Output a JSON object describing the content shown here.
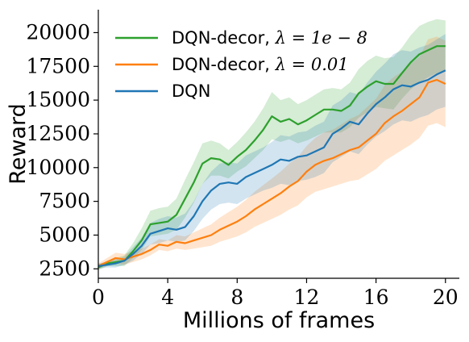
{
  "chart_data": {
    "type": "line",
    "xlabel": "Millions of frames",
    "ylabel": "Reward",
    "xlim": [
      0,
      20.8
    ],
    "ylim": [
      1800,
      21700
    ],
    "xticks": [
      0,
      4,
      8,
      12,
      16,
      20
    ],
    "yticks": [
      2500,
      5000,
      7500,
      10000,
      12500,
      15000,
      17500,
      20000
    ],
    "grid": false,
    "legend_position": "top-left",
    "legend": [
      {
        "series": "decor_small",
        "text": "DQN-decor, ",
        "math": "λ = 1e − 8"
      },
      {
        "series": "decor_large",
        "text": "DQN-decor, ",
        "math": "λ = 0.01"
      },
      {
        "series": "dqn",
        "text": "DQN",
        "math": ""
      }
    ],
    "series": [
      {
        "key": "decor_small",
        "name": "DQN-decor, λ = 1e − 8",
        "color": "#2ca02c",
        "x": [
          0,
          0.5,
          1,
          1.5,
          2,
          2.5,
          3,
          3.5,
          4,
          4.5,
          5,
          5.5,
          6,
          6.5,
          7,
          7.5,
          8,
          8.5,
          9,
          9.5,
          10,
          10.5,
          11,
          11.5,
          12,
          12.5,
          13,
          13.5,
          14,
          14.5,
          15,
          15.5,
          16,
          16.5,
          17,
          17.5,
          18,
          18.5,
          19,
          19.5,
          20
        ],
        "values": [
          2600,
          2900,
          3000,
          3100,
          3800,
          4600,
          5800,
          5900,
          6000,
          6500,
          7700,
          8900,
          10300,
          10700,
          10600,
          10200,
          10800,
          11300,
          12000,
          12800,
          13800,
          13400,
          13600,
          13200,
          13500,
          13900,
          14300,
          14300,
          14200,
          14600,
          15500,
          16000,
          16400,
          16200,
          16200,
          17000,
          17800,
          18400,
          18700,
          19000,
          19000
        ],
        "lower": [
          2400,
          2700,
          2700,
          2700,
          3300,
          3900,
          4900,
          5000,
          5100,
          5400,
          6300,
          7400,
          8800,
          9400,
          9400,
          9200,
          9700,
          10100,
          10700,
          11300,
          12100,
          11900,
          12100,
          11800,
          12000,
          12300,
          12600,
          12600,
          12600,
          13000,
          13700,
          14100,
          14500,
          14400,
          14300,
          15100,
          15800,
          16300,
          16700,
          17000,
          17200
        ],
        "upper": [
          2800,
          3100,
          3300,
          3500,
          4400,
          5500,
          6800,
          7000,
          7100,
          7700,
          9100,
          10400,
          11800,
          12000,
          11800,
          11300,
          11900,
          12600,
          13400,
          14400,
          15600,
          15000,
          15200,
          14700,
          15000,
          15400,
          15800,
          15900,
          15800,
          16300,
          17300,
          17900,
          18300,
          18100,
          18200,
          18900,
          19800,
          20500,
          20800,
          21000,
          20900
        ]
      },
      {
        "key": "decor_large",
        "name": "DQN-decor, λ = 0.01",
        "color": "#ff7f0e",
        "x": [
          0,
          0.5,
          1,
          1.5,
          2,
          2.5,
          3,
          3.5,
          4,
          4.5,
          5,
          5.5,
          6,
          6.5,
          7,
          7.5,
          8,
          8.5,
          9,
          9.5,
          10,
          10.5,
          11,
          11.5,
          12,
          12.5,
          13,
          13.5,
          14,
          14.5,
          15,
          15.5,
          16,
          16.5,
          17,
          17.5,
          18,
          18.5,
          19,
          19.5,
          20
        ],
        "values": [
          2700,
          3000,
          3300,
          3200,
          3400,
          3600,
          3900,
          4300,
          4200,
          4500,
          4400,
          4600,
          4800,
          5000,
          5400,
          5700,
          6000,
          6400,
          6900,
          7300,
          7700,
          8100,
          8600,
          9000,
          9700,
          10200,
          10500,
          10700,
          11000,
          11300,
          11500,
          12000,
          12500,
          13300,
          13800,
          14200,
          14700,
          15200,
          16300,
          16500,
          16200
        ],
        "lower": [
          2500,
          2700,
          2900,
          2800,
          3000,
          3200,
          3500,
          3900,
          3800,
          4000,
          3900,
          4000,
          4100,
          4200,
          4500,
          4700,
          4900,
          5200,
          5600,
          5900,
          6200,
          6500,
          6900,
          7200,
          7800,
          8200,
          8400,
          8600,
          8800,
          9000,
          9100,
          9500,
          9900,
          10500,
          10900,
          11300,
          11700,
          12200,
          13100,
          13300,
          13000
        ],
        "upper": [
          2900,
          3300,
          3700,
          3600,
          3800,
          4000,
          4300,
          4700,
          4600,
          5000,
          4900,
          5200,
          5500,
          5800,
          6300,
          6700,
          7100,
          7600,
          8200,
          8700,
          9200,
          9700,
          10300,
          10800,
          11600,
          12200,
          12600,
          12800,
          13200,
          13600,
          13900,
          14500,
          15100,
          16100,
          16700,
          17100,
          17700,
          18200,
          19500,
          19700,
          19400
        ]
      },
      {
        "key": "dqn",
        "name": "DQN",
        "color": "#1f77b4",
        "x": [
          0,
          0.5,
          1,
          1.5,
          2,
          2.5,
          3,
          3.5,
          4,
          4.5,
          5,
          5.5,
          6,
          6.5,
          7,
          7.5,
          8,
          8.5,
          9,
          9.5,
          10,
          10.5,
          11,
          11.5,
          12,
          12.5,
          13,
          13.5,
          14,
          14.5,
          15,
          15.5,
          16,
          16.5,
          17,
          17.5,
          18,
          18.5,
          19,
          19.5,
          20
        ],
        "values": [
          2700,
          2800,
          2900,
          3100,
          3600,
          4200,
          5100,
          5300,
          5500,
          5400,
          5600,
          6400,
          7500,
          8300,
          8800,
          8900,
          8800,
          9300,
          9600,
          9900,
          10200,
          10600,
          10500,
          10800,
          10900,
          11200,
          11500,
          12500,
          12900,
          13400,
          13200,
          14000,
          14700,
          15200,
          15800,
          16100,
          16000,
          16300,
          16500,
          16900,
          17200
        ],
        "lower": [
          2500,
          2600,
          2600,
          2800,
          3100,
          3600,
          4300,
          4400,
          4600,
          4500,
          4600,
          5300,
          6200,
          6900,
          7300,
          7400,
          7300,
          7700,
          8000,
          8300,
          8500,
          8800,
          8700,
          9000,
          9100,
          9300,
          9600,
          10400,
          10800,
          11200,
          11000,
          11700,
          12300,
          12700,
          13200,
          13500,
          13400,
          13700,
          13900,
          14300,
          14500
        ],
        "upper": [
          2900,
          3000,
          3200,
          3400,
          4100,
          4800,
          5900,
          6200,
          6400,
          6300,
          6600,
          7500,
          8800,
          9700,
          10300,
          10400,
          10300,
          10900,
          11200,
          11500,
          11900,
          12400,
          12300,
          12600,
          12700,
          13100,
          13400,
          14600,
          15000,
          15600,
          15400,
          16300,
          17100,
          17700,
          18400,
          18700,
          18600,
          18900,
          19100,
          19500,
          19900
        ]
      }
    ]
  }
}
